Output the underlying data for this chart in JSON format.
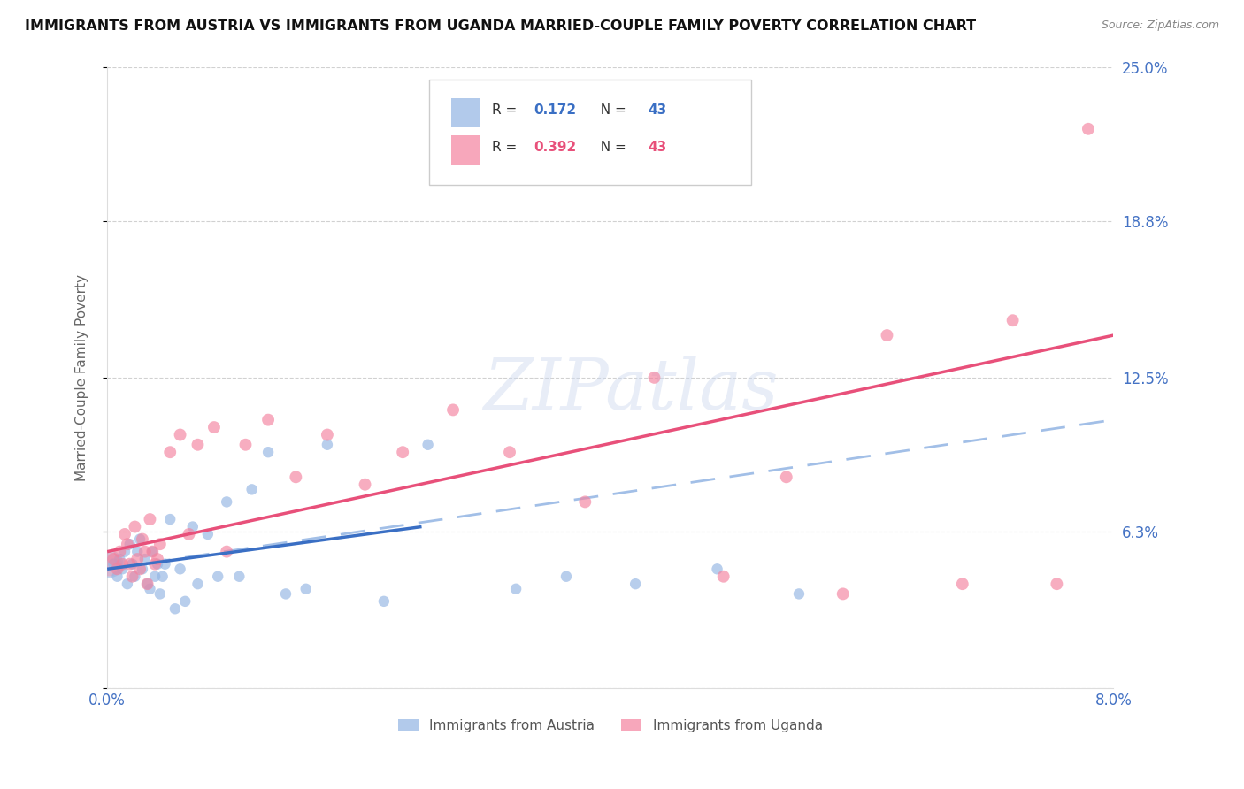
{
  "title": "IMMIGRANTS FROM AUSTRIA VS IMMIGRANTS FROM UGANDA MARRIED-COUPLE FAMILY POVERTY CORRELATION CHART",
  "source": "Source: ZipAtlas.com",
  "ylabel": "Married-Couple Family Poverty",
  "watermark": "ZIPatlas",
  "legend_austria": "Immigrants from Austria",
  "legend_uganda": "Immigrants from Uganda",
  "R_austria": 0.172,
  "N_austria": 43,
  "R_uganda": 0.392,
  "N_uganda": 43,
  "xlim": [
    0.0,
    8.0
  ],
  "ylim": [
    0.0,
    25.0
  ],
  "ytick_positions": [
    0.0,
    6.3,
    12.5,
    18.8,
    25.0
  ],
  "ytick_labels": [
    "",
    "6.3%",
    "12.5%",
    "18.8%",
    "25.0%"
  ],
  "xtick_positions": [
    0.0,
    2.0,
    4.0,
    6.0,
    8.0
  ],
  "xtick_labels": [
    "0.0%",
    "",
    "",
    "",
    "8.0%"
  ],
  "color_austria": "#92b4e3",
  "color_uganda": "#f4829e",
  "color_line_austria": "#3a6fc4",
  "color_line_uganda": "#e8507a",
  "color_axis_labels": "#4472c4",
  "background_color": "#ffffff",
  "grid_color": "#cccccc",
  "austria_x": [
    0.05,
    0.08,
    0.1,
    0.12,
    0.14,
    0.16,
    0.18,
    0.2,
    0.22,
    0.24,
    0.26,
    0.28,
    0.3,
    0.32,
    0.34,
    0.36,
    0.38,
    0.4,
    0.42,
    0.44,
    0.46,
    0.5,
    0.54,
    0.58,
    0.62,
    0.68,
    0.72,
    0.8,
    0.88,
    0.95,
    1.05,
    1.15,
    1.28,
    1.42,
    1.58,
    1.75,
    2.2,
    2.55,
    3.25,
    3.65,
    4.2,
    4.85,
    5.5
  ],
  "austria_y": [
    5.0,
    4.5,
    5.2,
    4.8,
    5.5,
    4.2,
    5.8,
    5.0,
    4.5,
    5.5,
    6.0,
    4.8,
    5.2,
    4.2,
    4.0,
    5.5,
    4.5,
    5.0,
    3.8,
    4.5,
    5.0,
    6.8,
    3.2,
    4.8,
    3.5,
    6.5,
    4.2,
    6.2,
    4.5,
    7.5,
    4.5,
    8.0,
    9.5,
    3.8,
    4.0,
    9.8,
    3.5,
    9.8,
    4.0,
    4.5,
    4.2,
    4.8,
    3.8
  ],
  "uganda_x": [
    0.05,
    0.08,
    0.1,
    0.12,
    0.14,
    0.16,
    0.18,
    0.2,
    0.22,
    0.24,
    0.26,
    0.28,
    0.3,
    0.32,
    0.34,
    0.36,
    0.38,
    0.4,
    0.42,
    0.5,
    0.58,
    0.65,
    0.72,
    0.85,
    0.95,
    1.1,
    1.28,
    1.5,
    1.75,
    2.05,
    2.35,
    2.75,
    3.2,
    3.8,
    4.35,
    4.9,
    5.4,
    5.85,
    6.2,
    6.8,
    7.2,
    7.55,
    7.8
  ],
  "uganda_y": [
    5.2,
    4.8,
    5.5,
    5.0,
    6.2,
    5.8,
    5.0,
    4.5,
    6.5,
    5.2,
    4.8,
    6.0,
    5.5,
    4.2,
    6.8,
    5.5,
    5.0,
    5.2,
    5.8,
    9.5,
    10.2,
    6.2,
    9.8,
    10.5,
    5.5,
    9.8,
    10.8,
    8.5,
    10.2,
    8.2,
    9.5,
    11.2,
    9.5,
    7.5,
    12.5,
    4.5,
    8.5,
    3.8,
    14.2,
    4.2,
    14.8,
    4.2,
    22.5
  ],
  "austria_marker_size": 80,
  "uganda_marker_size": 100,
  "austria_reg_x0": 0.0,
  "austria_reg_x1": 2.5,
  "austria_reg_y0": 4.8,
  "austria_reg_y1": 6.5,
  "austria_dash_x0": 0.0,
  "austria_dash_x1": 8.0,
  "austria_dash_y0": 4.8,
  "austria_dash_y1": 10.8,
  "uganda_reg_x0": 0.0,
  "uganda_reg_x1": 8.0,
  "uganda_reg_y0": 5.5,
  "uganda_reg_y1": 14.2
}
